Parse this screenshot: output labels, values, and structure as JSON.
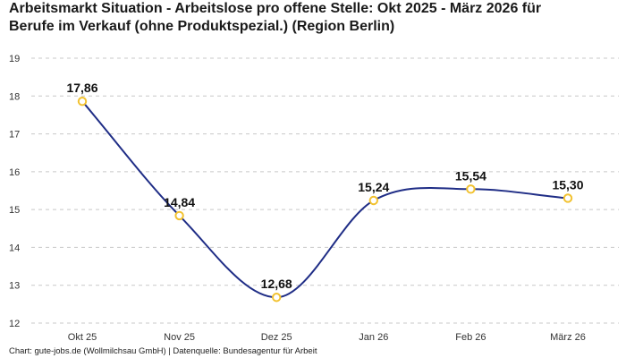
{
  "title_lines": [
    "Arbeitsmarkt Situation - Arbeitslose pro offene Stelle: Okt 2025 - März 2026 für",
    "Berufe im Verkauf (ohne Produktspezial.) (Region Berlin)"
  ],
  "source": "Chart: gute-jobs.de (Wollmilchsau GmbH) | Datenquelle: Bundesagentur für Arbeit",
  "colors": {
    "line": "#1f2d86",
    "marker": "#f2c230",
    "grid": "#c8c8c8"
  },
  "chart_data": {
    "type": "line",
    "categories": [
      "Okt 25",
      "Nov 25",
      "Dez 25",
      "Jan 26",
      "Feb 26",
      "März 26"
    ],
    "values": [
      17.86,
      14.84,
      12.68,
      15.24,
      15.54,
      15.3
    ],
    "data_labels": [
      "17,86",
      "14,84",
      "12,68",
      "15,24",
      "15,54",
      "15,30"
    ],
    "ylim": [
      12,
      19
    ],
    "yticks": [
      12,
      13,
      14,
      15,
      16,
      17,
      18,
      19
    ],
    "grid": "horizontal dashed",
    "smooth": true
  }
}
